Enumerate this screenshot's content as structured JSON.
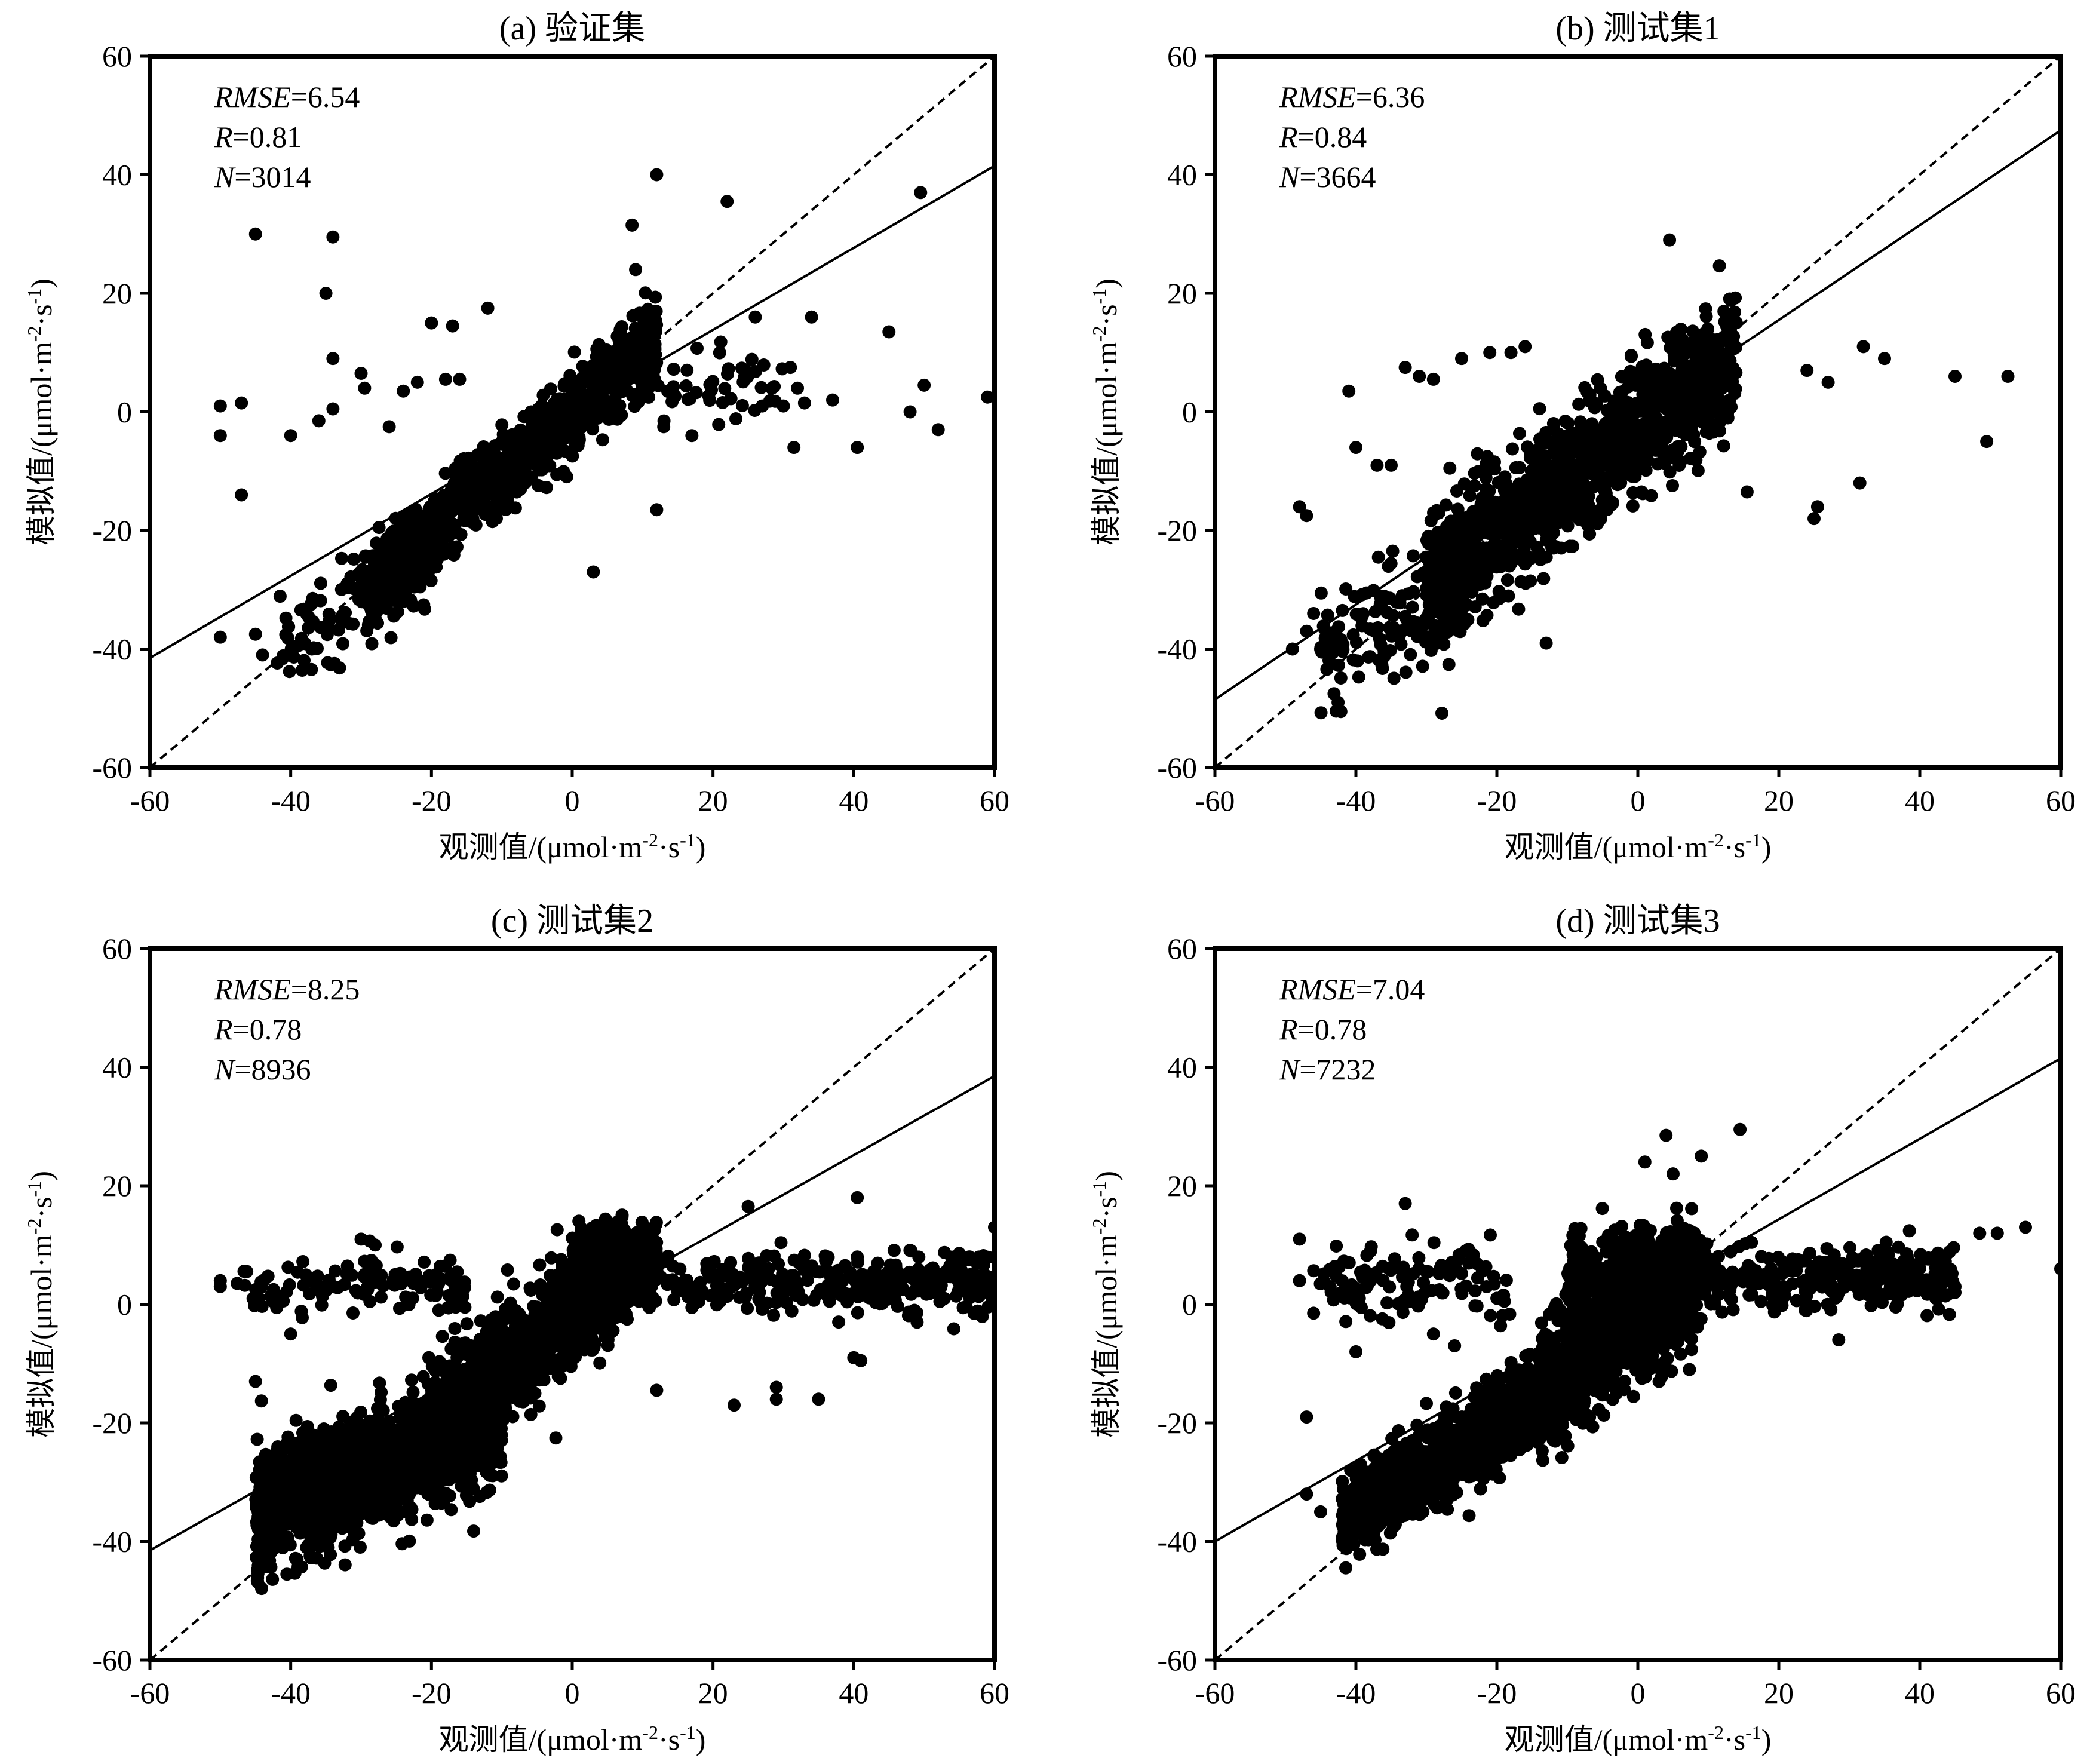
{
  "chart_data": [
    {
      "type": "scatter",
      "title": "(a) 验证集",
      "xlabel": {
        "main": "观测值/(μmol·m",
        "sup1": "-2",
        "mid": "·s",
        "sup2": "-1",
        "end": ")"
      },
      "ylabel": {
        "main": "模拟值/(μmol·m",
        "sup1": "-2",
        "mid": "·s",
        "sup2": "-1",
        "end": ")"
      },
      "xlim": [
        -60,
        60
      ],
      "ylim": [
        -60,
        60
      ],
      "xticks": [
        "-60",
        "-40",
        "-20",
        "0",
        "20",
        "40",
        "60"
      ],
      "yticks": [
        "-60",
        "-40",
        "-20",
        "0",
        "20",
        "40",
        "60"
      ],
      "stats": [
        {
          "label": "RMSE",
          "value": "=6.54"
        },
        {
          "label": "R",
          "value": "=0.81"
        },
        {
          "label": "N",
          "value": "=3014"
        }
      ],
      "fit_line": {
        "x": [
          -60,
          60
        ],
        "y": [
          -41.5,
          41.5
        ]
      },
      "identity_line": {
        "x": [
          -60,
          60
        ],
        "y": [
          -60,
          60
        ]
      },
      "point_clouds": [
        {
          "x_range": [
            -30,
            12
          ],
          "slope": 1.0,
          "intercept": 0,
          "noise_sd": 3.5,
          "count": 900
        },
        {
          "x_range": [
            -42,
            -20
          ],
          "slope": 0.6,
          "intercept": -14,
          "noise_sd": 4,
          "count": 120
        },
        {
          "x_range": [
            10,
            30
          ],
          "slope": 0.0,
          "intercept": 5,
          "noise_sd": 3,
          "count": 50
        }
      ],
      "points": [
        [
          -45,
          30
        ],
        [
          -34,
          29.5
        ],
        [
          -35,
          20
        ],
        [
          -50,
          1
        ],
        [
          -47,
          1.5
        ],
        [
          -50,
          -4
        ],
        [
          -47,
          -14
        ],
        [
          -40,
          -4
        ],
        [
          -36,
          -1.5
        ],
        [
          -34,
          9
        ],
        [
          -34,
          0.5
        ],
        [
          12,
          40
        ],
        [
          22,
          35.5
        ],
        [
          49.5,
          37
        ],
        [
          8.5,
          31.5
        ],
        [
          9,
          24
        ],
        [
          26,
          16
        ],
        [
          34,
          16
        ],
        [
          45,
          13.5
        ],
        [
          59,
          2.5
        ],
        [
          50,
          4.5
        ],
        [
          48,
          0
        ],
        [
          52,
          -3
        ],
        [
          40.5,
          -6
        ],
        [
          31.5,
          -6
        ],
        [
          37,
          2
        ],
        [
          12,
          -16.5
        ],
        [
          3,
          -27
        ],
        [
          -12,
          17.5
        ],
        [
          -20,
          15
        ],
        [
          -17,
          14.5
        ],
        [
          30,
          1
        ],
        [
          27,
          1
        ],
        [
          -50,
          -38
        ],
        [
          -30,
          6.5
        ],
        [
          -29.5,
          4
        ],
        [
          -26,
          -2.5
        ],
        [
          -22,
          5
        ],
        [
          -18,
          5.5
        ],
        [
          -16,
          5.5
        ],
        [
          -24,
          3.5
        ],
        [
          -44,
          -41
        ],
        [
          -40,
          -40.5
        ],
        [
          -37,
          -40
        ],
        [
          -45,
          -37.5
        ],
        [
          32,
          4
        ],
        [
          31,
          7.5
        ],
        [
          33,
          1.5
        ],
        [
          17,
          -4
        ],
        [
          13,
          -2.5
        ]
      ]
    },
    {
      "type": "scatter",
      "title": "(b) 测试集1",
      "xlabel": {
        "main": "观测值/(μmol·m",
        "sup1": "-2",
        "mid": "·s",
        "sup2": "-1",
        "end": ")"
      },
      "ylabel": {
        "main": "模拟值/(μmol·m",
        "sup1": "-2",
        "mid": "·s",
        "sup2": "-1",
        "end": ")"
      },
      "xlim": [
        -60,
        60
      ],
      "ylim": [
        -60,
        60
      ],
      "xticks": [
        "-60",
        "-40",
        "-20",
        "0",
        "20",
        "40",
        "60"
      ],
      "yticks": [
        "-60",
        "-40",
        "-20",
        "0",
        "20",
        "40",
        "60"
      ],
      "stats": [
        {
          "label": "RMSE",
          "value": "=6.36"
        },
        {
          "label": "R",
          "value": "=0.84"
        },
        {
          "label": "N",
          "value": "=3664"
        }
      ],
      "fit_line": {
        "x": [
          -60,
          60
        ],
        "y": [
          -48.5,
          47.5
        ]
      },
      "identity_line": {
        "x": [
          -60,
          60
        ],
        "y": [
          -60,
          60
        ]
      },
      "point_clouds": [
        {
          "x_range": [
            -30,
            14
          ],
          "slope": 0.85,
          "intercept": -3,
          "noise_sd": 5.5,
          "count": 1300
        },
        {
          "x_range": [
            -45,
            -25
          ],
          "slope": 0.5,
          "intercept": -18,
          "noise_sd": 5,
          "count": 150
        }
      ],
      "points": [
        [
          32,
          11
        ],
        [
          35,
          9
        ],
        [
          45,
          6
        ],
        [
          52.5,
          6
        ],
        [
          49.5,
          -5
        ],
        [
          31.5,
          -12
        ],
        [
          25.5,
          -16
        ],
        [
          25,
          -18
        ],
        [
          15.5,
          -13.5
        ],
        [
          4.5,
          29
        ],
        [
          -13,
          -39
        ],
        [
          -40,
          -6
        ],
        [
          -41,
          3.5
        ],
        [
          -33,
          7.5
        ],
        [
          -31,
          6
        ],
        [
          -29,
          5.5
        ],
        [
          -25,
          9
        ],
        [
          -48,
          -16
        ],
        [
          -47,
          -17.5
        ],
        [
          -46,
          -34
        ],
        [
          -47,
          -37
        ],
        [
          -49,
          -40
        ],
        [
          -45,
          -40
        ],
        [
          -37,
          -9
        ],
        [
          -35,
          -9
        ],
        [
          -21,
          10
        ],
        [
          -18,
          10
        ],
        [
          -16,
          11
        ],
        [
          24,
          7
        ],
        [
          27,
          5
        ]
      ]
    },
    {
      "type": "scatter",
      "title": "(c) 测试集2",
      "xlabel": {
        "main": "观测值/(μmol·m",
        "sup1": "-2",
        "mid": "·s",
        "sup2": "-1",
        "end": ")"
      },
      "ylabel": {
        "main": "模拟值/(μmol·m",
        "sup1": "-2",
        "mid": "·s",
        "sup2": "-1",
        "end": ")"
      },
      "xlim": [
        -60,
        60
      ],
      "ylim": [
        -60,
        60
      ],
      "xticks": [
        "-60",
        "-40",
        "-20",
        "0",
        "20",
        "40",
        "60"
      ],
      "yticks": [
        "-60",
        "-40",
        "-20",
        "0",
        "20",
        "40",
        "60"
      ],
      "stats": [
        {
          "label": "RMSE",
          "value": "=8.25"
        },
        {
          "label": "R",
          "value": "=0.78"
        },
        {
          "label": "N",
          "value": "=8936"
        }
      ],
      "fit_line": {
        "x": [
          -60,
          60
        ],
        "y": [
          -41.5,
          38.5
        ]
      },
      "identity_line": {
        "x": [
          -60,
          60
        ],
        "y": [
          -60,
          60
        ]
      },
      "point_clouds": [
        {
          "x_range": [
            -45,
            -10
          ],
          "slope": 0.45,
          "intercept": -15,
          "noise_sd": 5,
          "count": 1600
        },
        {
          "x_range": [
            -20,
            8
          ],
          "slope": 0.9,
          "intercept": -2,
          "noise_sd": 5,
          "count": 1000
        },
        {
          "x_range": [
            0,
            12
          ],
          "slope": 0.0,
          "intercept": 7,
          "noise_sd": 3,
          "count": 400
        },
        {
          "x_range": [
            8,
            60
          ],
          "slope": 0.0,
          "intercept": 3.5,
          "noise_sd": 2.5,
          "count": 350
        },
        {
          "x_range": [
            -48,
            -15
          ],
          "slope": 0.0,
          "intercept": 3,
          "noise_sd": 2.5,
          "count": 120
        }
      ],
      "points": [
        [
          -50,
          4
        ],
        [
          -50,
          3
        ],
        [
          40.5,
          18
        ],
        [
          25,
          16.5
        ],
        [
          35,
          -16
        ],
        [
          29,
          -14
        ],
        [
          29,
          -16
        ],
        [
          23,
          -17
        ],
        [
          60,
          13
        ],
        [
          60,
          1.5
        ],
        [
          -45,
          -13
        ],
        [
          12,
          -14.5
        ],
        [
          41,
          -9.5
        ],
        [
          40,
          -9
        ],
        [
          49,
          -3
        ],
        [
          -40,
          -5
        ],
        [
          -30,
          11
        ],
        [
          -28,
          10
        ]
      ]
    },
    {
      "type": "scatter",
      "title": "(d) 测试集3",
      "xlabel": {
        "main": "观测值/(μmol·m",
        "sup1": "-2",
        "mid": "·s",
        "sup2": "-1",
        "end": ")"
      },
      "ylabel": {
        "main": "模拟值/(μmol·m",
        "sup1": "-2",
        "mid": "·s",
        "sup2": "-1",
        "end": ")"
      },
      "xlim": [
        -60,
        60
      ],
      "ylim": [
        -60,
        60
      ],
      "xticks": [
        "-60",
        "-40",
        "-20",
        "0",
        "20",
        "40",
        "60"
      ],
      "yticks": [
        "-60",
        "-40",
        "-20",
        "0",
        "20",
        "40",
        "60"
      ],
      "stats": [
        {
          "label": "RMSE",
          "value": "=7.04"
        },
        {
          "label": "R",
          "value": "=0.78"
        },
        {
          "label": "N",
          "value": "=7232"
        }
      ],
      "fit_line": {
        "x": [
          -60,
          60
        ],
        "y": [
          -40,
          41.5
        ]
      },
      "identity_line": {
        "x": [
          -60,
          60
        ],
        "y": [
          -60,
          60
        ]
      },
      "point_clouds": [
        {
          "x_range": [
            -42,
            -12
          ],
          "slope": 0.75,
          "intercept": -5,
          "noise_sd": 3.5,
          "count": 1100
        },
        {
          "x_range": [
            -14,
            8
          ],
          "slope": 0.9,
          "intercept": -2,
          "noise_sd": 5,
          "count": 1100
        },
        {
          "x_range": [
            -10,
            10
          ],
          "slope": 0.0,
          "intercept": 5,
          "noise_sd": 3.5,
          "count": 500
        },
        {
          "x_range": [
            8,
            45
          ],
          "slope": 0.0,
          "intercept": 4,
          "noise_sd": 2.8,
          "count": 300
        },
        {
          "x_range": [
            -46,
            -18
          ],
          "slope": 0.0,
          "intercept": 4,
          "noise_sd": 3.5,
          "count": 120
        }
      ],
      "points": [
        [
          -48,
          11
        ],
        [
          -48,
          4
        ],
        [
          -46,
          -1.5
        ],
        [
          1,
          24
        ],
        [
          4,
          28.5
        ],
        [
          9,
          25
        ],
        [
          14.5,
          29.5
        ],
        [
          5,
          22
        ],
        [
          51,
          12
        ],
        [
          55,
          13
        ],
        [
          60,
          6
        ],
        [
          48.5,
          12
        ],
        [
          45,
          2
        ],
        [
          45,
          3
        ],
        [
          -33,
          17
        ],
        [
          -40,
          -8
        ],
        [
          -47,
          -19
        ],
        [
          -47,
          -32
        ],
        [
          -45,
          -35
        ],
        [
          -23,
          -22
        ],
        [
          28.5,
          -6
        ],
        [
          -29,
          -5
        ],
        [
          -26,
          -7
        ]
      ]
    }
  ]
}
